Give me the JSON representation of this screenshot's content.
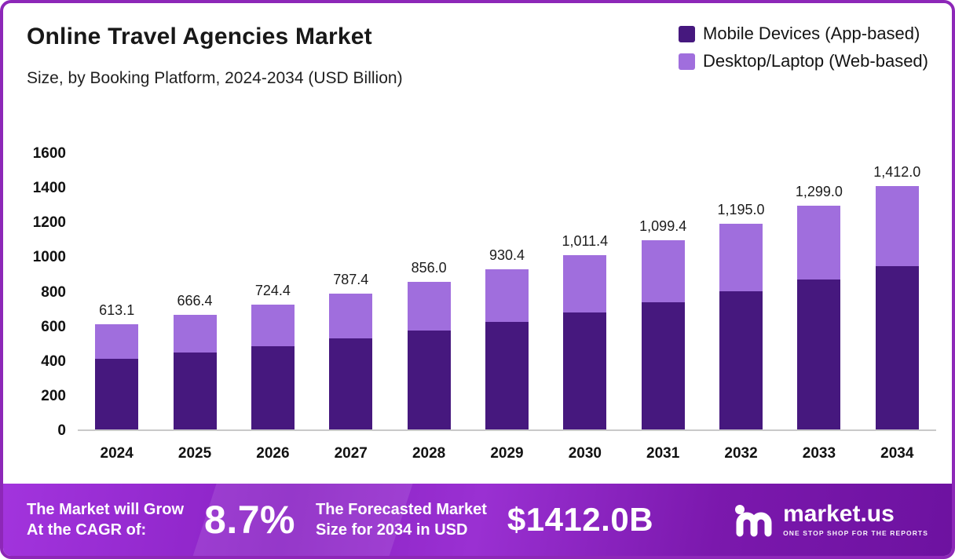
{
  "header": {
    "title": "Online Travel Agencies Market",
    "subtitle": "Size, by Booking Platform, 2024-2034 (USD Billion)"
  },
  "legend": [
    {
      "label": "Mobile Devices (App-based)",
      "color": "#46187e"
    },
    {
      "label": "Desktop/Laptop (Web-based)",
      "color": "#a06edd"
    }
  ],
  "chart_data": {
    "type": "bar",
    "stacked": true,
    "title": "Online Travel Agencies Market Size, by Booking Platform, 2024-2034 (USD Billion)",
    "categories": [
      "2024",
      "2025",
      "2026",
      "2027",
      "2028",
      "2029",
      "2030",
      "2031",
      "2032",
      "2033",
      "2034"
    ],
    "series": [
      {
        "name": "Mobile Devices (App-based)",
        "color": "#46187e",
        "values": [
          410.8,
          446.5,
          485.3,
          527.6,
          573.5,
          623.4,
          677.6,
          736.6,
          800.7,
          870.3,
          946.0
        ]
      },
      {
        "name": "Desktop/Laptop (Web-based)",
        "color": "#a06edd",
        "values": [
          202.3,
          219.9,
          239.1,
          259.8,
          282.5,
          307.0,
          333.8,
          362.8,
          394.3,
          428.7,
          466.0
        ]
      }
    ],
    "totals": [
      613.1,
      666.4,
      724.4,
      787.4,
      856.0,
      930.4,
      1011.4,
      1099.4,
      1195.0,
      1299.0,
      1412.0
    ],
    "total_labels": [
      "613.1",
      "666.4",
      "724.4",
      "787.4",
      "856.0",
      "930.4",
      "1,011.4",
      "1,099.4",
      "1,195.0",
      "1,299.0",
      "1,412.0"
    ],
    "xlabel": "",
    "ylabel": "",
    "ylim": [
      0,
      1600
    ],
    "yticks": [
      0,
      200,
      400,
      600,
      800,
      1000,
      1200,
      1400,
      1600
    ],
    "grid": false,
    "legend_position": "top-right"
  },
  "footer": {
    "cagr_label_line1": "The Market will Grow",
    "cagr_label_line2": "At the CAGR of:",
    "cagr_value": "8.7%",
    "forecast_label_line1": "The Forecasted Market",
    "forecast_label_line2": "Size for 2034 in USD",
    "forecast_value": "$1412.0B",
    "brand": "market.us",
    "brand_tagline": "ONE STOP SHOP FOR THE REPORTS"
  }
}
